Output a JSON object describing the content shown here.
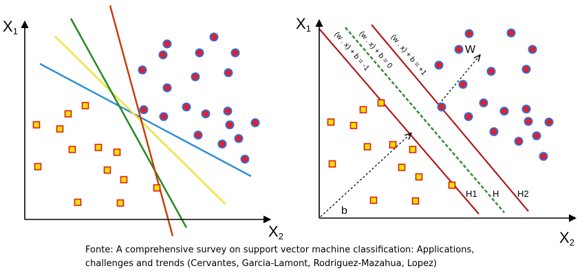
{
  "left_panel": {
    "x_axis_label": "X",
    "x_axis_sub": "2",
    "y_axis_label": "X",
    "y_axis_sub": "1",
    "line_colors": {
      "blue": "#2b8fd6",
      "yellow": "#f2e13a",
      "green": "#1f8a1f",
      "orange": "#c83c0c"
    }
  },
  "right_panel": {
    "x_axis_label": "X",
    "x_axis_sub": "2",
    "y_axis_label": "X",
    "y_axis_sub": "1",
    "hyperplane_labels": {
      "h1": "H1",
      "h": "H",
      "h2": "H2"
    },
    "equation_labels": {
      "minus": "(w . x) + b = -1",
      "zero": "(w . x) + b = 0",
      "plus": "(w . x) + b = +1"
    },
    "vector_w": "W",
    "vector_b": "b",
    "colors": {
      "margin": "#b01818",
      "hyperplane": "#2e8b2e"
    }
  },
  "markers": {
    "square_fill": "#f4e200",
    "square_stroke": "#d81a1a",
    "circle_fill": "#e0202a",
    "circle_stroke": "#2f6ed8"
  },
  "caption": {
    "line1": "Fonte: A comprehensive survey on support vector machine classification: Applications,",
    "line2": "challenges and trends (Cervantes, Garcia-Lamont, Rodriguez-Mazahua, Lopez)"
  }
}
